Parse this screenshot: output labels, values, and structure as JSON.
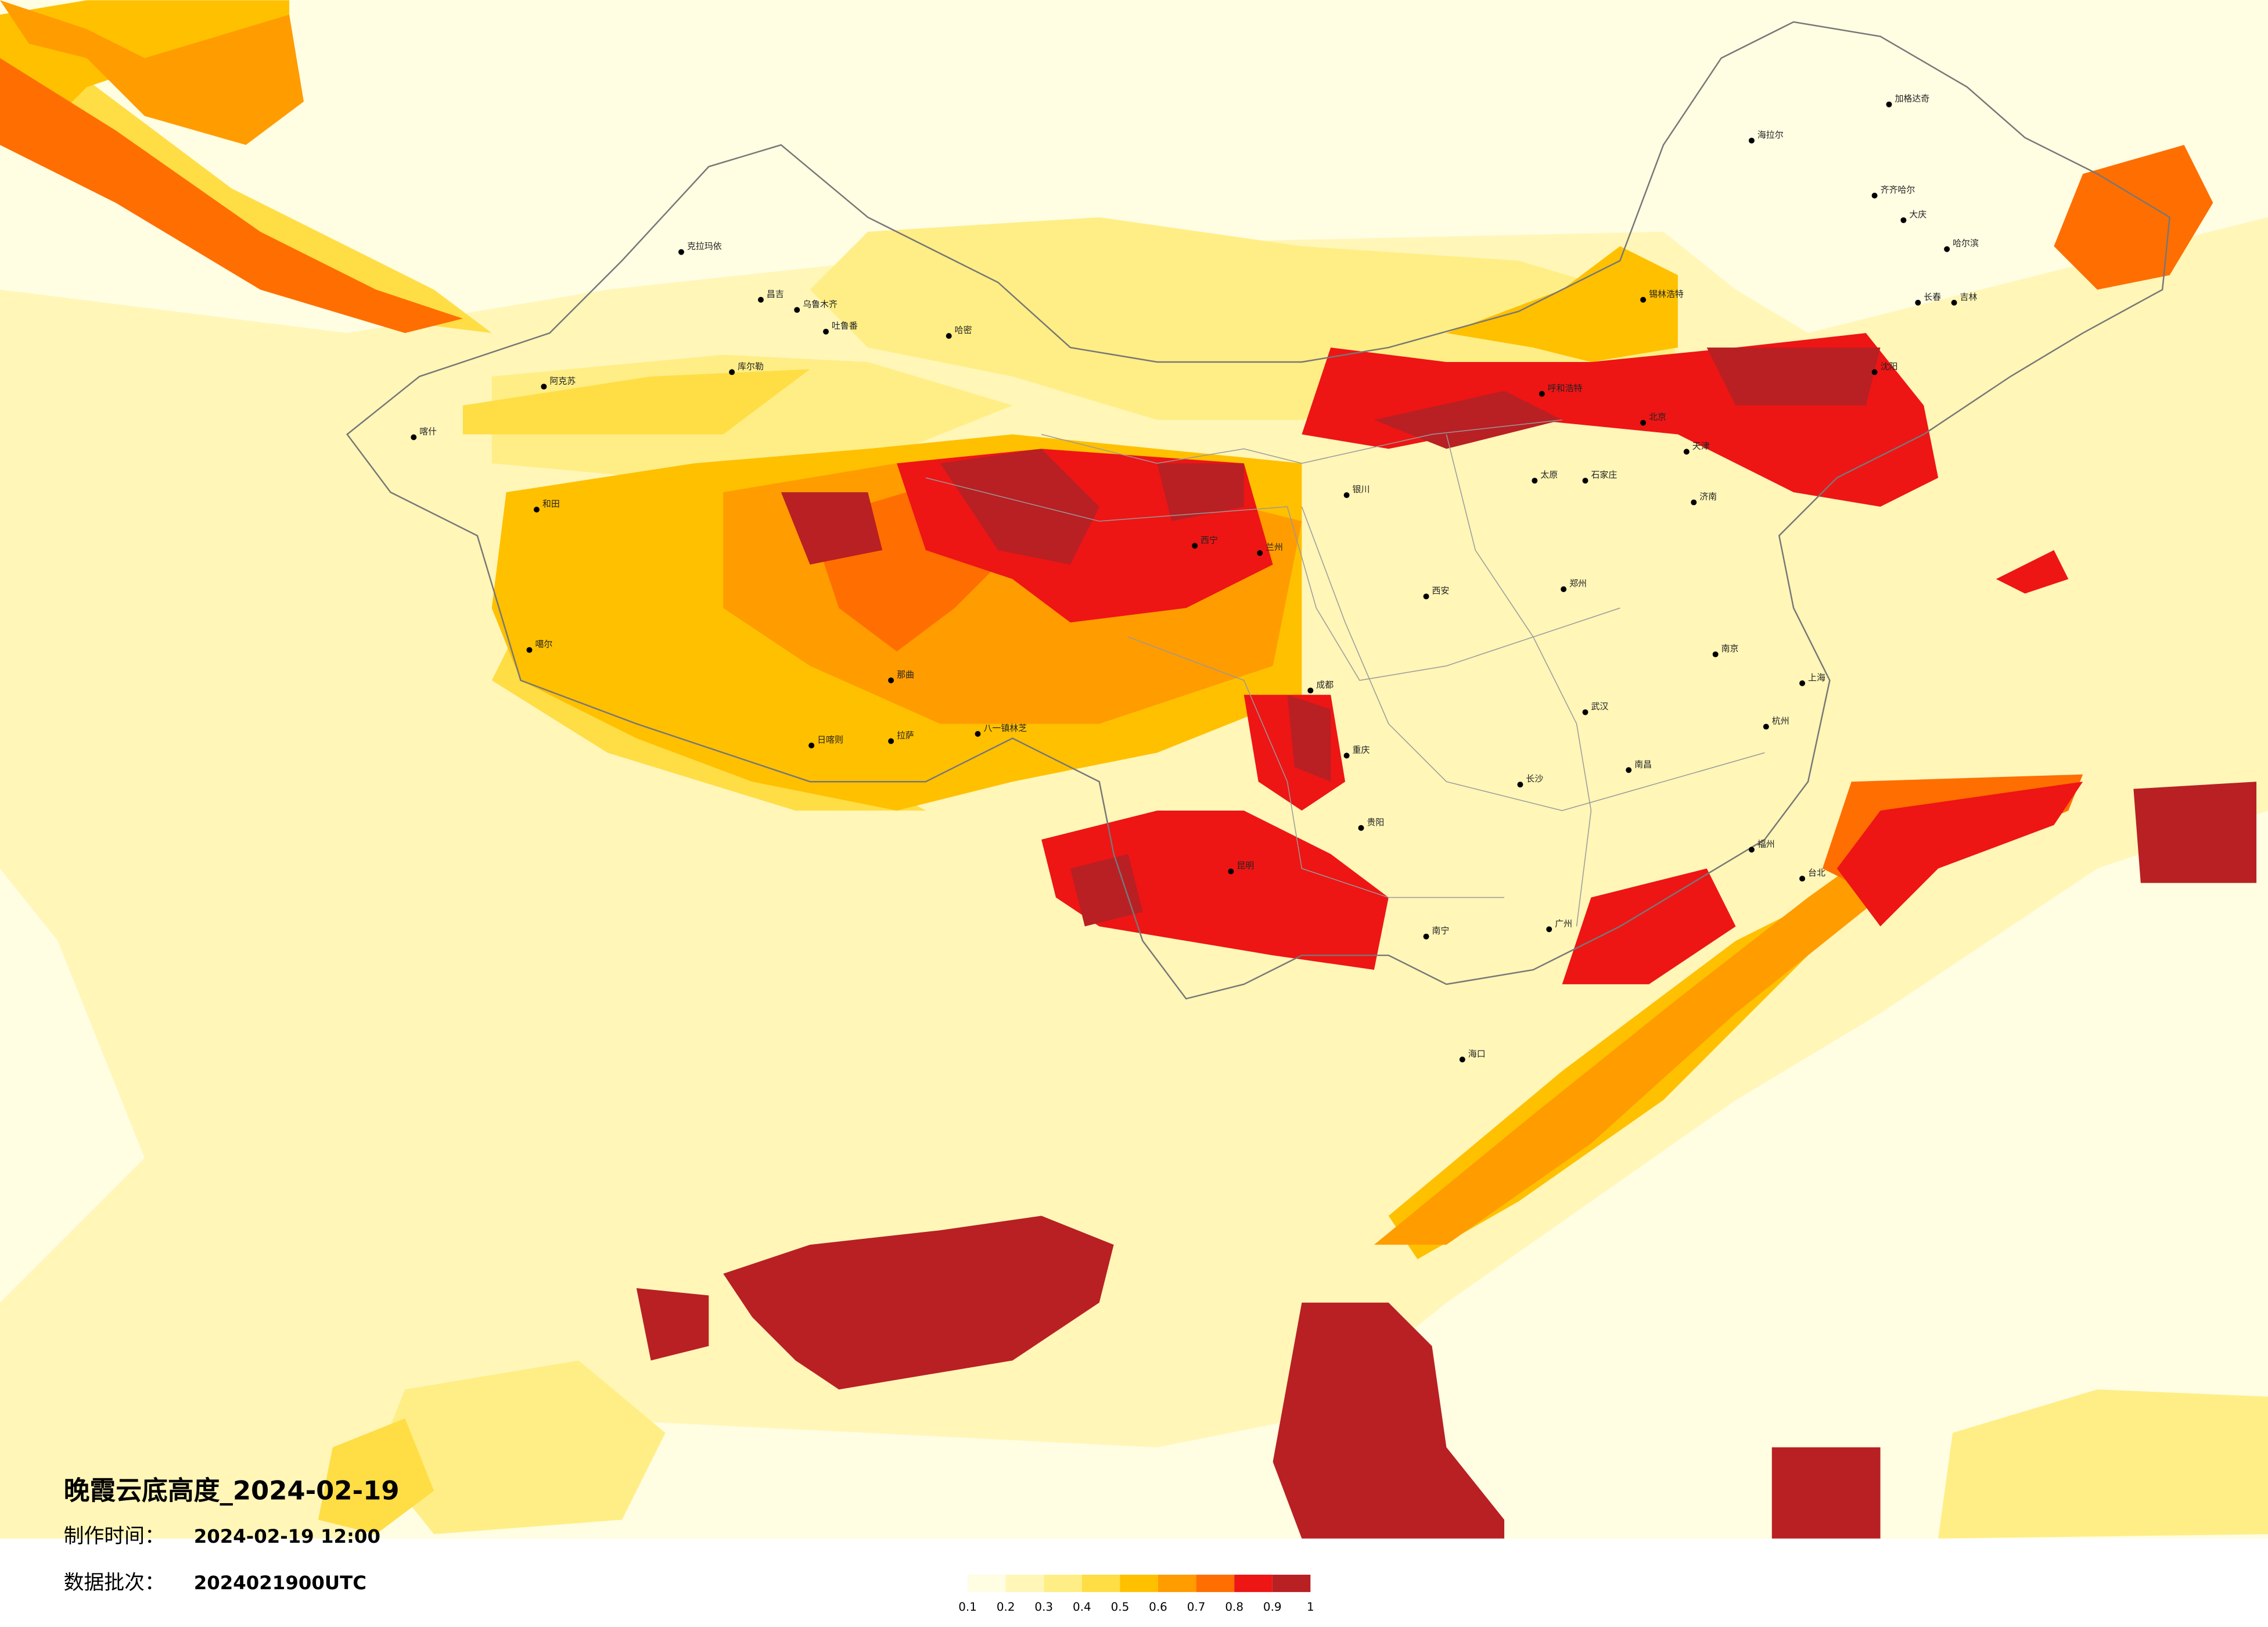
{
  "title": "晚霞云底高度_2024-02-19",
  "info": [
    {
      "label": "制作时间：",
      "value": "2024-02-19 12:00"
    },
    {
      "label": "数据批次：",
      "value": "2024021900UTC"
    }
  ],
  "colorbar": {
    "ticks": [
      0.1,
      0.2,
      0.3,
      0.4,
      0.5,
      0.6,
      0.7,
      0.8,
      0.9,
      1
    ],
    "colors": [
      "#fffde2",
      "#fff6b8",
      "#ffee85",
      "#ffdd45",
      "#ffc000",
      "#ff9c00",
      "#ff6e00",
      "#ee1515",
      "#b82024"
    ]
  },
  "cities": [
    "克拉玛依",
    "昌吉",
    "乌鲁木齐",
    "吐鲁番",
    "哈密",
    "库尔勒",
    "阿克苏",
    "喀什",
    "和田",
    "噶尔",
    "日喀则",
    "拉萨",
    "那曲",
    "八一镇林芝",
    "海拉尔",
    "加格达奇",
    "齐齐哈尔",
    "大庆",
    "哈尔滨",
    "长春",
    "吉林",
    "沈阳",
    "锡林浩特",
    "呼和浩特",
    "北京",
    "天津",
    "太原",
    "石家庄",
    "济南",
    "西安",
    "郑州",
    "武汉",
    "南京",
    "上海",
    "杭州",
    "成都",
    "重庆",
    "贵阳",
    "昆明",
    "长沙",
    "南昌",
    "福州",
    "广州",
    "南宁",
    "海口",
    "台北",
    "兰州",
    "西宁",
    "银川"
  ]
}
